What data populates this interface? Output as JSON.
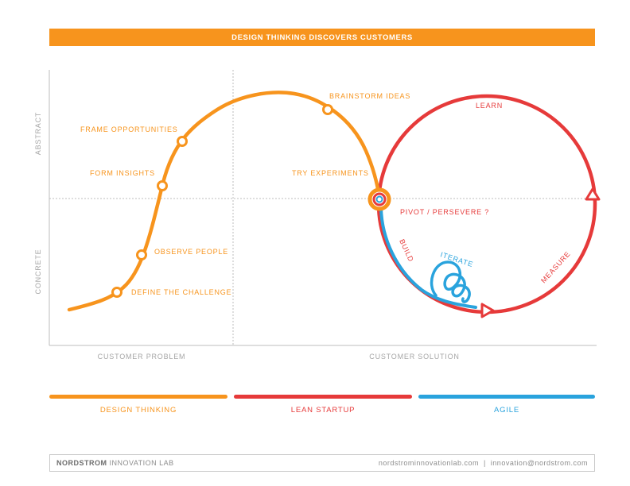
{
  "title": "DESIGN THINKING DISCOVERS CUSTOMERS",
  "axes": {
    "y_top": "ABSTRACT",
    "y_bottom": "CONCRETE",
    "x_left": "CUSTOMER PROBLEM",
    "x_right": "CUSTOMER SOLUTION"
  },
  "design_thinking_steps": {
    "define": "DEFINE THE CHALLENGE",
    "observe": "OBSERVE PEOPLE",
    "insights": "FORM INSIGHTS",
    "frame": "FRAME OPPORTUNITIES",
    "brainstorm": "BRAINSTORM IDEAS",
    "experiments": "TRY EXPERIMENTS"
  },
  "lean_steps": {
    "pivot": "PIVOT / PERSEVERE ?",
    "learn": "LEARN",
    "build": "BUILD",
    "measure": "MEASURE"
  },
  "agile_steps": {
    "iterate": "ITERATE"
  },
  "legend": {
    "design": "DESIGN THINKING",
    "lean": "LEAN STARTUP",
    "agile": "AGILE"
  },
  "colors": {
    "orange": "#f7941d",
    "red": "#e63a3a",
    "blue": "#29a3dd"
  },
  "footer": {
    "brand": "NORDSTROM",
    "lab": " INNOVATION LAB",
    "contact": "nordstrominnovationlab.com  |  innovation@nordstrom.com"
  }
}
